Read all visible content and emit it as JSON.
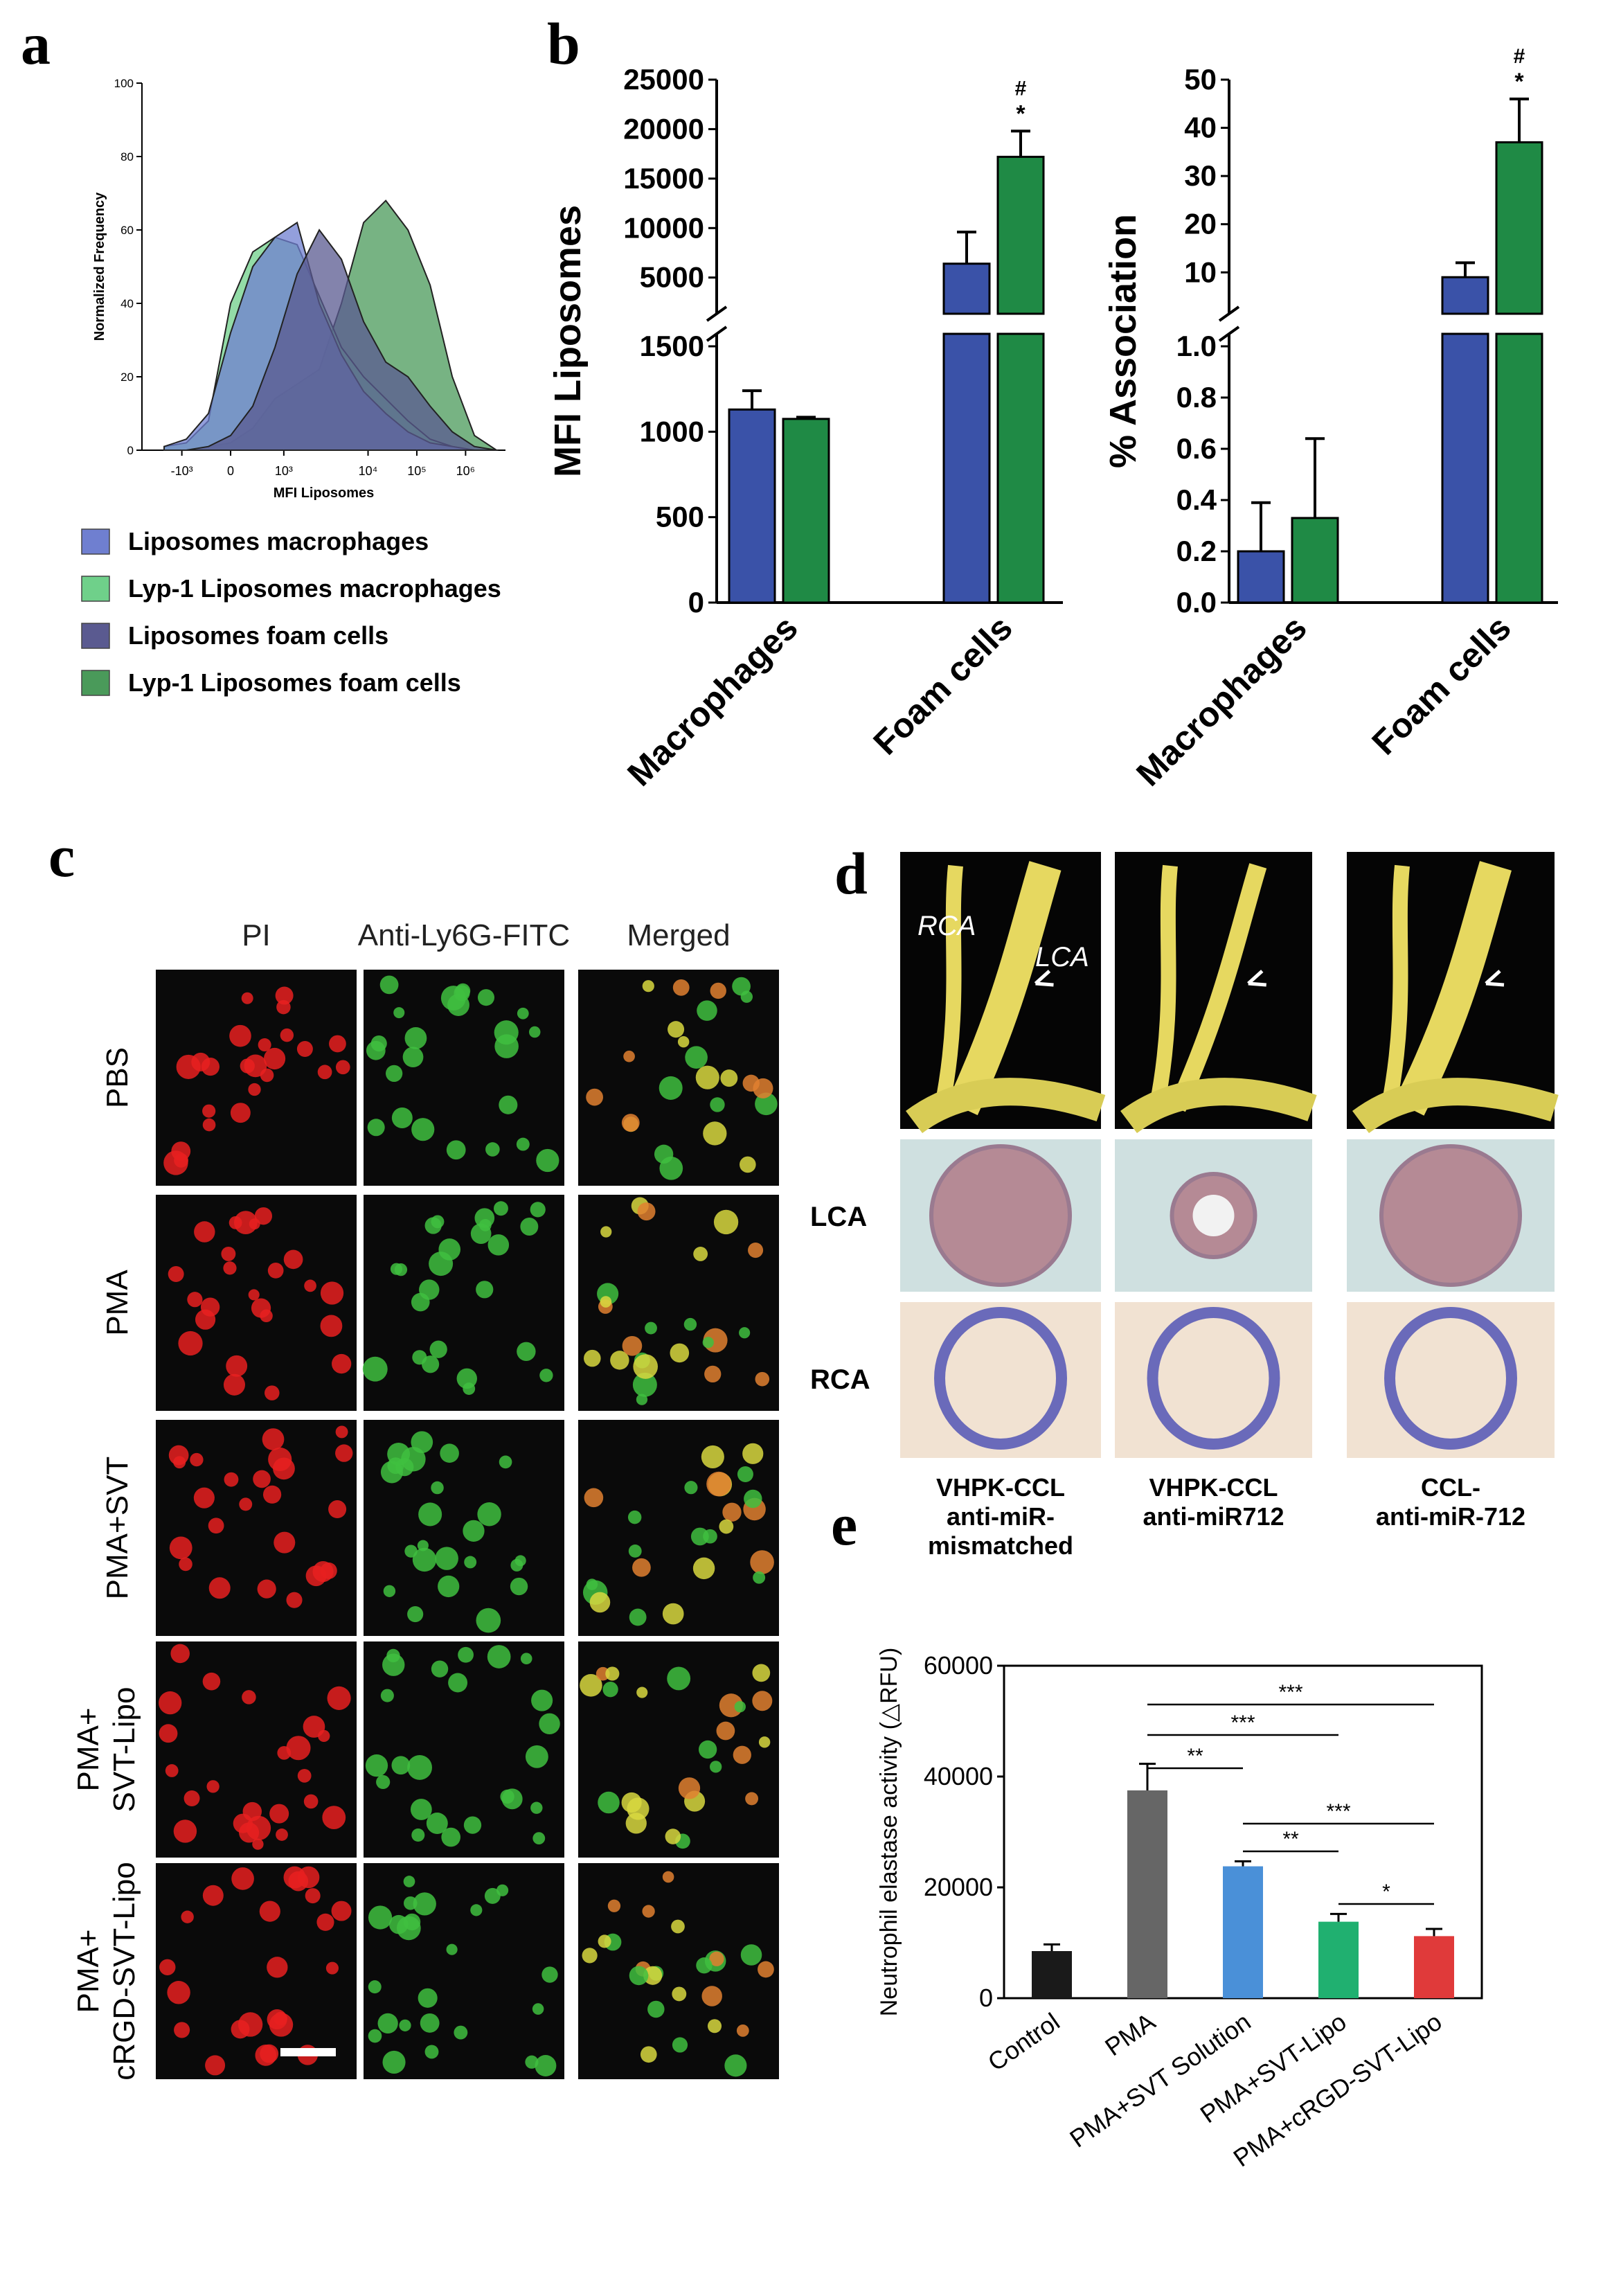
{
  "panel_labels": {
    "a": "a",
    "b": "b",
    "c": "c",
    "d": "d",
    "e": "e"
  },
  "colors": {
    "blue": "#3a52a8",
    "green": "#1f8a45",
    "hist_lipo_mac": "#6f7fd0",
    "hist_lyp_mac": "#6fd08a",
    "hist_lipo_foam": "#5a5a90",
    "hist_lyp_foam": "#4a9a5a",
    "red_cell": "#e82020",
    "green_cell": "#40c040",
    "yellow_cell": "#d8d840",
    "e_control": "#1a1a1a",
    "e_pma": "#666666",
    "e_svt_solution": "#4a90d8",
    "e_svt_lipo": "#20b070",
    "e_crgd": "#e03a3a"
  },
  "chart_data": [
    {
      "id": "a",
      "type": "area",
      "xlabel": "MFI Liposomes",
      "ylabel": "Normalized Frequency",
      "x_ticks": [
        "-10³",
        "0",
        "10³",
        "10⁴",
        "10⁵",
        "10⁶"
      ],
      "y_ticks": [
        0,
        20,
        40,
        60,
        80,
        100
      ],
      "ylim": [
        0,
        100
      ],
      "legend": [
        "Liposomes macrophages",
        "Lyp-1 Liposomes macrophages",
        "Liposomes foam cells",
        "Lyp-1 Liposomes foam cells"
      ],
      "series": [
        {
          "name": "Liposomes macrophages",
          "x": [
            -1.5,
            -1.0,
            -0.5,
            0,
            0.5,
            1.0,
            1.5,
            2.0,
            2.5,
            3.0,
            3.5,
            4.0,
            4.5,
            5.0,
            5.5,
            6.0
          ],
          "y": [
            1,
            3,
            10,
            32,
            50,
            58,
            62,
            40,
            26,
            16,
            10,
            5,
            2,
            1,
            0,
            0
          ]
        },
        {
          "name": "Lyp-1 Liposomes macrophages",
          "x": [
            -1.5,
            -1.0,
            -0.5,
            0,
            0.5,
            1.0,
            1.5,
            2.0,
            2.5,
            3.0,
            3.5,
            4.0,
            4.5,
            5.0,
            5.5,
            6.0
          ],
          "y": [
            1,
            2,
            8,
            40,
            54,
            58,
            56,
            42,
            28,
            20,
            14,
            8,
            3,
            1,
            0,
            0
          ]
        },
        {
          "name": "Liposomes foam cells",
          "x": [
            -1.5,
            -1.0,
            -0.5,
            0,
            0.5,
            1.0,
            1.5,
            2.0,
            2.5,
            3.0,
            3.5,
            4.0,
            4.5,
            5.0,
            5.5,
            6.0
          ],
          "y": [
            0,
            0,
            1,
            4,
            12,
            28,
            48,
            60,
            52,
            35,
            24,
            20,
            12,
            5,
            1,
            0
          ]
        },
        {
          "name": "Lyp-1 Liposomes foam cells",
          "x": [
            -1.5,
            -1.0,
            -0.5,
            0,
            0.5,
            1.0,
            1.5,
            2.0,
            2.5,
            3.0,
            3.5,
            4.0,
            4.5,
            5.0,
            5.5,
            6.0
          ],
          "y": [
            0,
            0,
            1,
            2,
            6,
            14,
            18,
            22,
            40,
            62,
            68,
            60,
            45,
            20,
            4,
            0
          ]
        }
      ]
    },
    {
      "id": "b-left",
      "type": "bar",
      "ylabel": "MFI Liposomes",
      "categories": [
        "Macrophages",
        "Foam cells"
      ],
      "y_ticks_upper": [
        5000,
        10000,
        15000,
        20000,
        25000
      ],
      "y_ticks_lower": [
        0,
        500,
        1000,
        1500
      ],
      "series": [
        {
          "name": "Liposomes",
          "values": [
            1130,
            6400
          ],
          "errors": [
            110,
            3200
          ]
        },
        {
          "name": "Lyp-1 Liposomes",
          "values": [
            1075,
            17200
          ],
          "errors": [
            10,
            2600
          ]
        }
      ],
      "annotations": [
        {
          "category": "Foam cells",
          "series": "Lyp-1 Liposomes",
          "text": [
            "#",
            "*"
          ]
        }
      ]
    },
    {
      "id": "b-right",
      "type": "bar",
      "ylabel": "% Association",
      "categories": [
        "Macrophages",
        "Foam cells"
      ],
      "y_ticks_upper": [
        10,
        20,
        30,
        40,
        50
      ],
      "y_ticks_lower": [
        "0.0",
        "0.2",
        "0.4",
        "0.6",
        "0.8",
        "1.0"
      ],
      "series": [
        {
          "name": "Liposomes",
          "values": [
            0.2,
            9
          ],
          "errors": [
            0.19,
            3
          ]
        },
        {
          "name": "Lyp-1 Liposomes",
          "values": [
            0.33,
            37
          ],
          "errors": [
            0.31,
            9
          ]
        }
      ],
      "annotations": [
        {
          "category": "Foam cells",
          "series": "Lyp-1 Liposomes",
          "text": [
            "#",
            "*"
          ]
        }
      ]
    },
    {
      "id": "e",
      "type": "bar",
      "ylabel": "Neutrophil elastase activity (△RFU)",
      "categories": [
        "Control",
        "PMA",
        "PMA+SVT Solution",
        "PMA+SVT-Lipo",
        "PMA+cRGD-SVT-Lipo"
      ],
      "values": [
        8500,
        37500,
        23800,
        13800,
        11200
      ],
      "errors": [
        1200,
        4800,
        900,
        1400,
        1300
      ],
      "ylim": [
        0,
        60000
      ],
      "y_ticks": [
        0,
        20000,
        40000,
        60000
      ],
      "significance": [
        {
          "from": 1,
          "to": 2,
          "label": "**"
        },
        {
          "from": 1,
          "to": 3,
          "label": "***"
        },
        {
          "from": 1,
          "to": 4,
          "label": "***"
        },
        {
          "from": 2,
          "to": 3,
          "label": "**"
        },
        {
          "from": 2,
          "to": 4,
          "label": "***"
        },
        {
          "from": 3,
          "to": 4,
          "label": "*"
        }
      ]
    }
  ],
  "panel_c": {
    "columns": [
      "PI",
      "Anti-Ly6G-FITC",
      "Merged"
    ],
    "rows": [
      "PBS",
      "PMA",
      "PMA+SVT",
      "PMA+\nSVT-Lipo",
      "PMA+\ncRGD-SVT-Lipo"
    ]
  },
  "panel_d": {
    "gross_labels": [
      "RCA",
      "LCA"
    ],
    "row_labels": [
      "LCA",
      "RCA"
    ],
    "column_labels": [
      "VHPK-CCL\nanti-miR-\nmismatched",
      "VHPK-CCL\nanti-miR712",
      "CCL-\nanti-miR-712"
    ]
  }
}
